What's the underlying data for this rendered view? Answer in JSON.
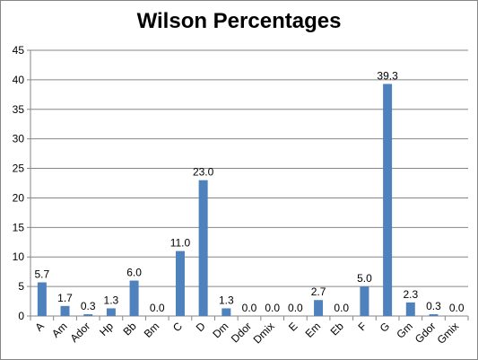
{
  "chart_data": {
    "type": "bar",
    "title": "Wilson Percentages",
    "xlabel": "",
    "ylabel": "",
    "categories": [
      "A",
      "Am",
      "Ador",
      "Hp",
      "Bb",
      "Bm",
      "C",
      "D",
      "Dm",
      "Ddor",
      "Dmix",
      "E",
      "Em",
      "Eb",
      "F",
      "G",
      "Gm",
      "Gdor",
      "Gmix"
    ],
    "values": [
      5.7,
      1.7,
      0.3,
      1.3,
      6.0,
      0.0,
      11.0,
      23.0,
      1.3,
      0.0,
      0.0,
      0.0,
      2.7,
      0.0,
      5.0,
      39.3,
      2.3,
      0.3,
      0.0
    ],
    "value_labels": [
      "5.7",
      "1.7",
      "0.3",
      "1.3",
      "6.0",
      "0.0",
      "11.0",
      "23.0",
      "1.3",
      "0.0",
      "0.0",
      "0.0",
      "2.7",
      "0.0",
      "5.0",
      "39.3",
      "2.3",
      "0.3",
      "0.0"
    ],
    "ylim": [
      0,
      45
    ],
    "yticks": [
      "0",
      "5",
      "10",
      "15",
      "20",
      "25",
      "30",
      "35",
      "40",
      "45"
    ],
    "grid": true,
    "legend": "none",
    "bar_color": "#4F81BD",
    "grid_color": "#868686"
  }
}
